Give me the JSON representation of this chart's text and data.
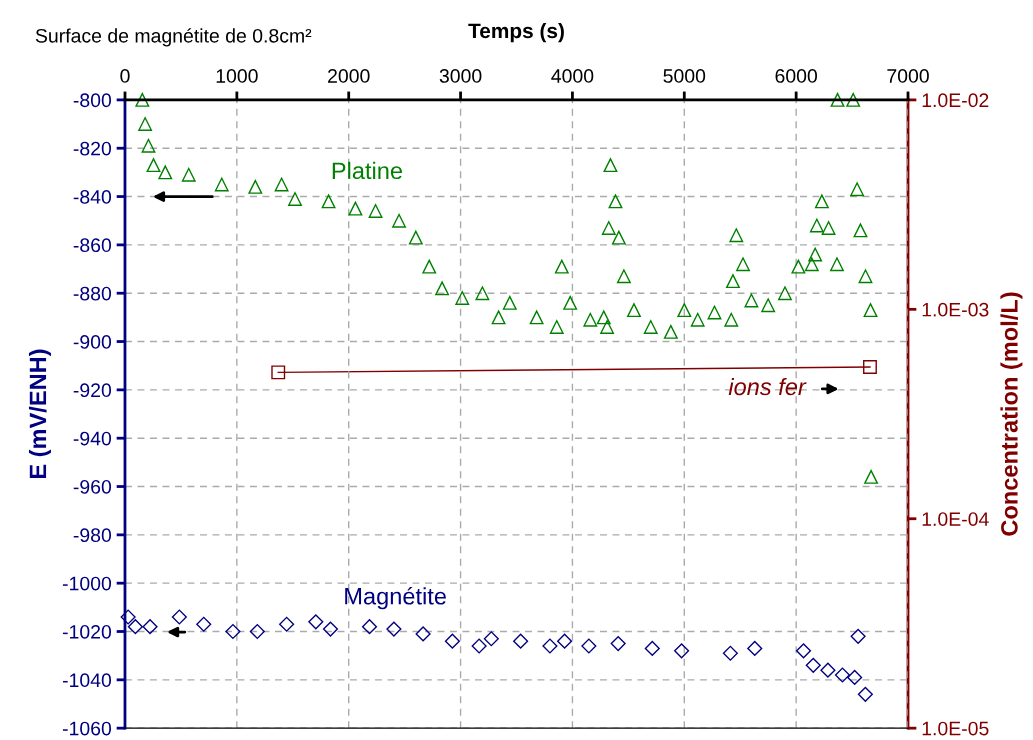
{
  "chart_data": {
    "type": "scatter",
    "title": "Surface de magnétite de 0.8cm²",
    "xlabel": "Temps (s)",
    "ylabel": "E (mV/ENH)",
    "y2label": "Concentration (mol/L)",
    "xlim": [
      0,
      7000
    ],
    "xticks": [
      0,
      1000,
      2000,
      3000,
      4000,
      5000,
      6000,
      7000
    ],
    "ylim": [
      -1060,
      -800
    ],
    "yticks": [
      -1060,
      -1040,
      -1020,
      -1000,
      -980,
      -960,
      -940,
      -920,
      -900,
      -880,
      -860,
      -840,
      -820,
      -800
    ],
    "y2lim": [
      1e-05,
      0.01
    ],
    "y2ticks": [
      {
        "value": 1e-05,
        "label": "1.0E-05"
      },
      {
        "value": 0.0001,
        "label": "1.0E-04"
      },
      {
        "value": 0.001,
        "label": "1.0E-03"
      },
      {
        "value": 0.01,
        "label": "1.0E-02"
      }
    ],
    "log": "y2",
    "grid": true,
    "series": [
      {
        "name": "Platine",
        "marker": "triangle",
        "color": "#008000",
        "x": [
          155,
          180,
          210,
          255,
          360,
          570,
          865,
          1165,
          1400,
          1520,
          1820,
          2060,
          2240,
          2450,
          2600,
          2720,
          2835,
          3015,
          3195,
          3340,
          3440,
          3680,
          3860,
          3905,
          3980,
          4160,
          4280,
          4310,
          4325,
          4340,
          4385,
          4415,
          4460,
          4550,
          4700,
          4880,
          5000,
          5120,
          5270,
          5420,
          5435,
          5465,
          5525,
          5600,
          5750,
          5900,
          6020,
          6140,
          6170,
          6185,
          6230,
          6290,
          6365,
          6370,
          6510,
          6545,
          6575,
          6620,
          6665,
          6670
        ],
        "values": [
          -800,
          -810,
          -819,
          -827,
          -830,
          -831,
          -835,
          -836,
          -835,
          -841,
          -842,
          -845,
          -846,
          -850,
          -857,
          -869,
          -878,
          -882,
          -880,
          -890,
          -884,
          -890,
          -894,
          -869,
          -884,
          -891,
          -890,
          -894,
          -853,
          -827,
          -842,
          -857,
          -873,
          -887,
          -894,
          -896,
          -887,
          -891,
          -888,
          -891,
          -875,
          -856,
          -868,
          -883,
          -885,
          -880,
          -869,
          -868,
          -864,
          -852,
          -842,
          -853,
          -868,
          -800,
          -800,
          -837,
          -854,
          -873,
          -887,
          -956
        ]
      },
      {
        "name": "Magnétite",
        "marker": "diamond",
        "color": "#000080",
        "x": [
          28,
          93,
          224,
          486,
          704,
          965,
          1183,
          1445,
          1706,
          1837,
          2186,
          2404,
          2665,
          2927,
          3166,
          3275,
          3537,
          3799,
          3930,
          4147,
          4409,
          4714,
          4976,
          5412,
          5630,
          6066,
          6153,
          6284,
          6414,
          6523,
          6554,
          6619
        ],
        "values": [
          -1014,
          -1018,
          -1018,
          -1014,
          -1017,
          -1020,
          -1020,
          -1017,
          -1016,
          -1019,
          -1018,
          -1019,
          -1021,
          -1024,
          -1026,
          -1023,
          -1024,
          -1026,
          -1024,
          -1026,
          -1025,
          -1027,
          -1028,
          -1029,
          -1027,
          -1028,
          -1034,
          -1036,
          -1038,
          -1039,
          -1022,
          -1046
        ]
      },
      {
        "name": "ions fer",
        "type": "line",
        "marker": "square",
        "axis": "y2",
        "color": "#800000",
        "x": [
          1370,
          6660
        ],
        "values": [
          0.0005,
          0.00053
        ]
      }
    ]
  }
}
